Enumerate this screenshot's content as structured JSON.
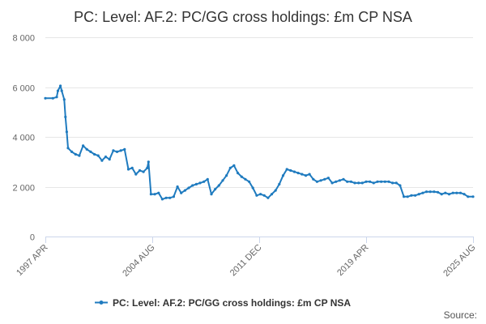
{
  "title": "PC: Level: AF.2: PC/GG cross holdings: £m CP NSA",
  "source_label": "Source:",
  "colors": {
    "series": "#1f7bbf"
  },
  "chart_data": {
    "type": "line",
    "title": "PC: Level: AF.2: PC/GG cross holdings: £m CP NSA",
    "xlabel": "",
    "ylabel": "",
    "ylim": [
      0,
      8000
    ],
    "y_ticks": [
      0,
      2000,
      4000,
      6000,
      8000
    ],
    "y_tick_labels": [
      "0",
      "2 000",
      "4 000",
      "6 000",
      "8 000"
    ],
    "x_ticks": [
      "1997 APR",
      "2004 AUG",
      "2011 DEC",
      "2019 APR",
      "2025 AUG"
    ],
    "xlim": [
      "1997-04",
      "2025-08"
    ],
    "grid": true,
    "legend": "bottom-center",
    "series": [
      {
        "name": "PC: Level: AF.2: PC/GG cross holdings: £m CP NSA",
        "color": "#1f7bbf",
        "points": [
          [
            "1997-04",
            5550
          ],
          [
            "1997-10",
            5550
          ],
          [
            "1998-01",
            5600
          ],
          [
            "1998-02",
            5850
          ],
          [
            "1998-04",
            6050
          ],
          [
            "1998-05",
            5850
          ],
          [
            "1998-07",
            5500
          ],
          [
            "1998-08",
            4800
          ],
          [
            "1998-09",
            4200
          ],
          [
            "1998-10",
            3550
          ],
          [
            "1999-01",
            3400
          ],
          [
            "1999-04",
            3300
          ],
          [
            "1999-07",
            3250
          ],
          [
            "1999-10",
            3650
          ],
          [
            "2000-01",
            3500
          ],
          [
            "2000-04",
            3400
          ],
          [
            "2000-07",
            3300
          ],
          [
            "2000-10",
            3250
          ],
          [
            "2001-01",
            3050
          ],
          [
            "2001-04",
            3200
          ],
          [
            "2001-07",
            3100
          ],
          [
            "2001-10",
            3450
          ],
          [
            "2002-01",
            3400
          ],
          [
            "2002-04",
            3450
          ],
          [
            "2002-07",
            3500
          ],
          [
            "2002-10",
            2700
          ],
          [
            "2003-01",
            2750
          ],
          [
            "2003-04",
            2500
          ],
          [
            "2003-07",
            2650
          ],
          [
            "2003-10",
            2600
          ],
          [
            "2004-01",
            2750
          ],
          [
            "2004-02",
            3000
          ],
          [
            "2004-04",
            1700
          ],
          [
            "2004-07",
            1700
          ],
          [
            "2004-10",
            1750
          ],
          [
            "2005-01",
            1500
          ],
          [
            "2005-04",
            1550
          ],
          [
            "2005-07",
            1550
          ],
          [
            "2005-10",
            1600
          ],
          [
            "2006-01",
            2000
          ],
          [
            "2006-04",
            1750
          ],
          [
            "2006-07",
            1850
          ],
          [
            "2006-10",
            1950
          ],
          [
            "2007-01",
            2050
          ],
          [
            "2007-04",
            2100
          ],
          [
            "2007-07",
            2150
          ],
          [
            "2007-10",
            2200
          ],
          [
            "2008-01",
            2300
          ],
          [
            "2008-04",
            1700
          ],
          [
            "2008-07",
            1900
          ],
          [
            "2008-10",
            2050
          ],
          [
            "2009-01",
            2250
          ],
          [
            "2009-04",
            2450
          ],
          [
            "2009-07",
            2750
          ],
          [
            "2009-10",
            2850
          ],
          [
            "2010-01",
            2550
          ],
          [
            "2010-04",
            2400
          ],
          [
            "2010-07",
            2300
          ],
          [
            "2010-10",
            2200
          ],
          [
            "2011-01",
            1950
          ],
          [
            "2011-04",
            1650
          ],
          [
            "2011-07",
            1700
          ],
          [
            "2011-10",
            1650
          ],
          [
            "2012-01",
            1550
          ],
          [
            "2012-04",
            1700
          ],
          [
            "2012-07",
            1850
          ],
          [
            "2012-10",
            2100
          ],
          [
            "2013-01",
            2450
          ],
          [
            "2013-04",
            2700
          ],
          [
            "2013-07",
            2650
          ],
          [
            "2013-10",
            2600
          ],
          [
            "2014-01",
            2550
          ],
          [
            "2014-04",
            2500
          ],
          [
            "2014-07",
            2450
          ],
          [
            "2014-10",
            2500
          ],
          [
            "2015-01",
            2300
          ],
          [
            "2015-04",
            2200
          ],
          [
            "2015-07",
            2250
          ],
          [
            "2015-10",
            2300
          ],
          [
            "2016-01",
            2350
          ],
          [
            "2016-04",
            2150
          ],
          [
            "2016-07",
            2200
          ],
          [
            "2016-10",
            2250
          ],
          [
            "2017-01",
            2300
          ],
          [
            "2017-04",
            2200
          ],
          [
            "2017-07",
            2200
          ],
          [
            "2017-10",
            2150
          ],
          [
            "2018-01",
            2150
          ],
          [
            "2018-04",
            2150
          ],
          [
            "2018-07",
            2200
          ],
          [
            "2018-10",
            2200
          ],
          [
            "2019-01",
            2150
          ],
          [
            "2019-04",
            2200
          ],
          [
            "2019-07",
            2200
          ],
          [
            "2019-10",
            2200
          ],
          [
            "2020-01",
            2200
          ],
          [
            "2020-04",
            2150
          ],
          [
            "2020-07",
            2150
          ],
          [
            "2020-10",
            2050
          ],
          [
            "2021-01",
            1600
          ],
          [
            "2021-04",
            1600
          ],
          [
            "2021-07",
            1650
          ],
          [
            "2021-10",
            1650
          ],
          [
            "2022-01",
            1700
          ],
          [
            "2022-04",
            1750
          ],
          [
            "2022-07",
            1800
          ],
          [
            "2022-10",
            1800
          ],
          [
            "2023-01",
            1800
          ],
          [
            "2023-04",
            1780
          ],
          [
            "2023-07",
            1700
          ],
          [
            "2023-10",
            1750
          ],
          [
            "2024-01",
            1700
          ],
          [
            "2024-04",
            1750
          ],
          [
            "2024-07",
            1750
          ],
          [
            "2024-10",
            1750
          ],
          [
            "2025-01",
            1700
          ],
          [
            "2025-04",
            1600
          ],
          [
            "2025-08",
            1600
          ]
        ]
      }
    ]
  }
}
